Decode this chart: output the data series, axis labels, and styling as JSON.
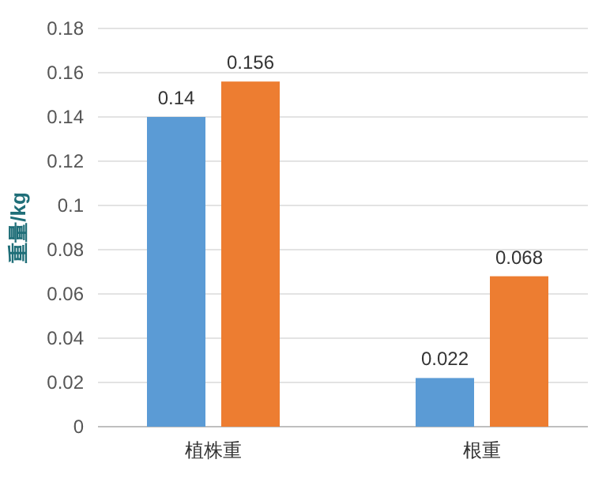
{
  "chart_data": {
    "type": "bar",
    "ylabel": "重量/kg",
    "categories": [
      "植株重",
      "根重"
    ],
    "series": [
      {
        "color": "#5b9bd5",
        "values": [
          0.14,
          0.022
        ]
      },
      {
        "color": "#ed7d31",
        "values": [
          0.156,
          0.068
        ]
      }
    ],
    "ylim": [
      0,
      0.18
    ],
    "yticks": [
      0,
      0.02,
      0.04,
      0.06,
      0.08,
      0.1,
      0.12,
      0.14,
      0.16,
      0.18
    ],
    "grid": "y",
    "data_labels": true
  }
}
